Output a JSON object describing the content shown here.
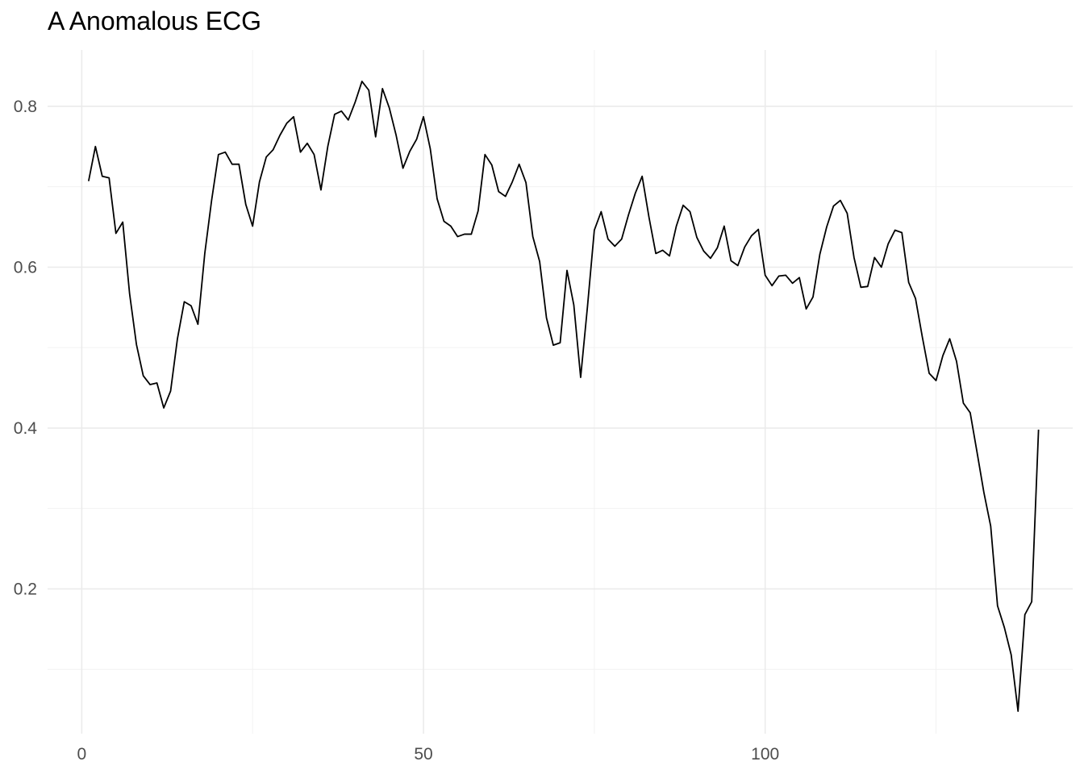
{
  "chart_data": {
    "type": "line",
    "title": "A Anomalous ECG",
    "xlabel": "",
    "ylabel": "",
    "xlim": [
      -5,
      145
    ],
    "ylim": [
      0.02,
      0.87
    ],
    "x_ticks": [
      0,
      50,
      100
    ],
    "x_tick_labels": [
      "0",
      "50",
      "100"
    ],
    "x_minor_ticks": [
      25,
      75,
      125
    ],
    "y_ticks": [
      0.2,
      0.4,
      0.6,
      0.8
    ],
    "y_tick_labels": [
      "0.2",
      "0.4",
      "0.6",
      "0.8"
    ],
    "y_minor_ticks": [
      0.1,
      0.3,
      0.5,
      0.7
    ],
    "grid": true,
    "legend": "none",
    "line_color": "#000000",
    "series": [
      {
        "values": [
          0.707,
          0.75,
          0.713,
          0.711,
          0.642,
          0.656,
          0.567,
          0.504,
          0.465,
          0.454,
          0.456,
          0.425,
          0.446,
          0.511,
          0.557,
          0.552,
          0.529,
          0.617,
          0.683,
          0.74,
          0.743,
          0.728,
          0.728,
          0.678,
          0.651,
          0.706,
          0.737,
          0.746,
          0.764,
          0.779,
          0.787,
          0.743,
          0.754,
          0.74,
          0.696,
          0.75,
          0.79,
          0.794,
          0.783,
          0.805,
          0.831,
          0.82,
          0.762,
          0.822,
          0.798,
          0.764,
          0.723,
          0.744,
          0.759,
          0.787,
          0.747,
          0.685,
          0.657,
          0.651,
          0.638,
          0.641,
          0.641,
          0.67,
          0.74,
          0.727,
          0.694,
          0.688,
          0.706,
          0.728,
          0.705,
          0.638,
          0.607,
          0.537,
          0.503,
          0.506,
          0.596,
          0.553,
          0.463,
          0.551,
          0.646,
          0.669,
          0.635,
          0.626,
          0.635,
          0.665,
          0.692,
          0.713,
          0.662,
          0.617,
          0.621,
          0.614,
          0.651,
          0.677,
          0.669,
          0.637,
          0.62,
          0.611,
          0.624,
          0.651,
          0.608,
          0.602,
          0.625,
          0.639,
          0.647,
          0.59,
          0.577,
          0.589,
          0.59,
          0.58,
          0.587,
          0.548,
          0.563,
          0.616,
          0.65,
          0.676,
          0.683,
          0.667,
          0.612,
          0.575,
          0.576,
          0.612,
          0.6,
          0.629,
          0.646,
          0.643,
          0.581,
          0.561,
          0.513,
          0.468,
          0.459,
          0.49,
          0.511,
          0.483,
          0.431,
          0.419,
          0.37,
          0.32,
          0.278,
          0.179,
          0.152,
          0.118,
          0.048,
          0.168,
          0.184,
          0.398
        ],
        "x_start": 1
      }
    ]
  }
}
